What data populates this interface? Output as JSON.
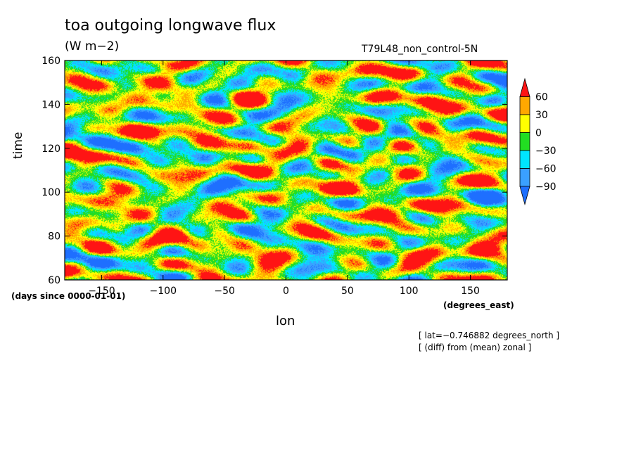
{
  "chart_data": {
    "type": "heatmap",
    "title": "toa outgoing longwave flux",
    "units": "(W m−2)",
    "run_label": "T79L48_non_control-5N",
    "xlabel": "lon",
    "x_units": "(degrees_east)",
    "ylabel": "time",
    "y_units": "(days since 0000-01-01)",
    "xlim": [
      -180,
      180
    ],
    "ylim": [
      60,
      160
    ],
    "x_ticks": [
      -150,
      -100,
      -50,
      0,
      50,
      100,
      150
    ],
    "y_ticks": [
      60,
      80,
      100,
      120,
      140,
      160
    ],
    "annotations": [
      "[ lat=−0.746882 degrees_north ]",
      "[ (diff) from (mean) zonal ]"
    ],
    "colorbar": {
      "levels": [
        -90,
        -60,
        -30,
        0,
        30,
        60
      ],
      "level_labels": [
        "−90",
        "−60",
        "−30",
        "0",
        "30",
        "60"
      ],
      "colors": [
        "#1e6fff",
        "#3aa0ff",
        "#00e5ff",
        "#22dd22",
        "#ffff00",
        "#ffa800",
        "#ff1414"
      ]
    }
  }
}
